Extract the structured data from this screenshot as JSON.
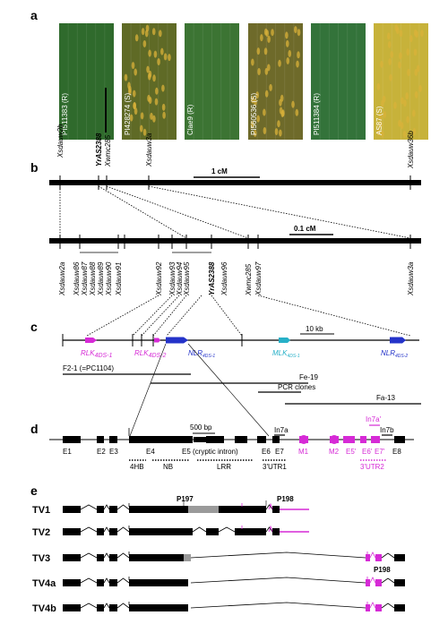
{
  "panel_letters": {
    "a": "a",
    "b": "b",
    "c": "c",
    "d": "d",
    "e": "e"
  },
  "panel_a": {
    "leaves": [
      {
        "label": "PI511383 (R)",
        "color": "#2f6a2c",
        "spotted": false
      },
      {
        "label": "PI428274 (S)",
        "color": "#5f6a26",
        "spotted": true
      },
      {
        "label": "Clae9 (R)",
        "color": "#3c7433",
        "spotted": false
      },
      {
        "label": "PI560536 (S)",
        "color": "#6e6a2a",
        "spotted": true
      },
      {
        "label": "PI511384 (R)",
        "color": "#33733a",
        "spotted": false
      },
      {
        "label": "AS87 (S)",
        "color": "#c7b23a",
        "spotted": true
      }
    ]
  },
  "panel_b": {
    "top_markers": [
      "Xsdauw2b",
      "YrAS2388",
      "Xwmc285",
      "Xsdauw3a",
      "Xsdauw36b"
    ],
    "scale_top": "1 cM",
    "bottom_markers": [
      "Xsdauw2a",
      "Xsdauw86",
      "Xsdauw87",
      "Xsdauw88",
      "Xsdauw89",
      "Xsdauw90",
      "Xsdauw91",
      "Xsdauw92",
      "Xsdauw93",
      "Xsdauw94",
      "Xsdauw95",
      "YrAS2388",
      "Xsdauw96",
      "Xwmc285",
      "Xsdauw97",
      "Xsdauw3a"
    ],
    "scale_bottom": "0.1 cM"
  },
  "panel_c": {
    "genes": {
      "rlk1": "RLK",
      "rlk1_sub": "4DS-1",
      "rlk2": "RLK",
      "rlk2_sub": "4DS-2",
      "nlr1": "NLR",
      "nlr1_sub": "4DS-1",
      "mlk1": "MLK",
      "mlk1_sub": "4DS-1",
      "nlr2": "NLR",
      "nlr2_sub": "4DS-2"
    },
    "scale": "10 kb",
    "clones": [
      "F2-1 (=PC1104)",
      "Fe-19",
      "PCR clones",
      "Fa-13"
    ]
  },
  "panel_d": {
    "scale": "500 bp",
    "exons": [
      "E1",
      "E2",
      "E3",
      "E4",
      "E5 (cryptic intron)",
      "E6",
      "E7",
      "In7a",
      "M1",
      "M2",
      "E5'",
      "E6'",
      "E7'",
      "In7a'",
      "In7b",
      "E8"
    ],
    "domains": [
      "4HB",
      "NB",
      "LRR",
      "3'UTR1",
      "3'UTR2"
    ]
  },
  "panel_e": {
    "transcripts": [
      "TV1",
      "TV2",
      "TV3",
      "TV4a",
      "TV4b"
    ],
    "annotations": [
      "P197",
      "P198",
      "P198"
    ]
  },
  "colors": {
    "magenta": "#d62ad6",
    "blue": "#2433c9",
    "cyan": "#27b0c8",
    "grey": "#9a9a9a",
    "black": "#000000"
  }
}
